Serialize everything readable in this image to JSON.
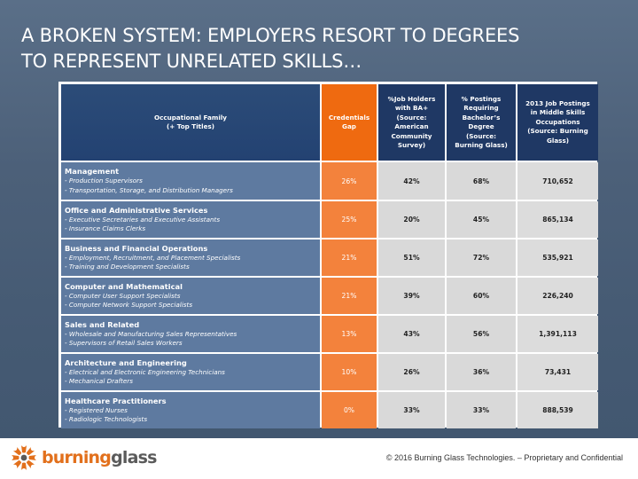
{
  "slide": {
    "title": "A BROKEN SYSTEM: EMPLOYERS RESORT TO DEGREES\nTO REPRESENT UNRELATED SKILLS…"
  },
  "table": {
    "headers": {
      "family": "Occupational Family\n(+ Top Titles)",
      "gap": "Credentials\nGap",
      "ba_holders": "%Job Holders\nwith BA+\n(Source:\nAmerican\nCommunity\nSurvey)",
      "postings_ba": "% Postings\nRequiring\nBachelor’s\nDegree\n(Source:\nBurning Glass)",
      "postings_2013": "2013 Job Postings\nin Middle Skills\nOccupations\n(Source: Burning\nGlass)"
    },
    "rows": [
      {
        "family": "Management",
        "titles": [
          "- Production Supervisors",
          "- Transportation, Storage, and Distribution Managers"
        ],
        "gap": "26%",
        "ba_holders": "42%",
        "postings_ba": "68%",
        "postings_2013": "710,652"
      },
      {
        "family": "Office and Administrative Services",
        "titles": [
          "- Executive Secretaries and Executive Assistants",
          "- Insurance Claims Clerks"
        ],
        "gap": "25%",
        "ba_holders": "20%",
        "postings_ba": "45%",
        "postings_2013": "865,134"
      },
      {
        "family": "Business and Financial Operations",
        "titles": [
          "- Employment, Recruitment, and Placement Specialists",
          "- Training and Development Specialists"
        ],
        "gap": "21%",
        "ba_holders": "51%",
        "postings_ba": "72%",
        "postings_2013": "535,921"
      },
      {
        "family": "Computer and Mathematical",
        "titles": [
          "- Computer User Support Specialists",
          "- Computer Network Support Specialists"
        ],
        "gap": "21%",
        "ba_holders": "39%",
        "postings_ba": "60%",
        "postings_2013": "226,240"
      },
      {
        "family": "Sales and Related",
        "titles": [
          "- Wholesale and Manufacturing Sales Representatives",
          "- Supervisors of Retail Sales Workers"
        ],
        "gap": "13%",
        "ba_holders": "43%",
        "postings_ba": "56%",
        "postings_2013": "1,391,113"
      },
      {
        "family": "Architecture and Engineering",
        "titles": [
          "- Electrical and Electronic Engineering Technicians",
          "- Mechanical Drafters"
        ],
        "gap": "10%",
        "ba_holders": "26%",
        "postings_ba": "36%",
        "postings_2013": "73,431"
      },
      {
        "family": "Healthcare Practitioners",
        "titles": [
          "- Registered Nurses",
          "- Radiologic Technologists"
        ],
        "gap": "0%",
        "ba_holders": "33%",
        "postings_ba": "33%",
        "postings_2013": "888,539"
      }
    ]
  },
  "footer": {
    "logo_word_1": "burning",
    "logo_word_2": "glass",
    "logo_icon": "burning-glass-logo-icon",
    "copyright": "© 2016 Burning Glass Technologies. – Proprietary and Confidential"
  },
  "colors": {
    "background": "#4c6079",
    "header_navy": "#1f3864",
    "gap_orange": "#ef6a10",
    "gap_cell_orange": "#f3823c",
    "family_blue": "#5e7aa0",
    "stat_gray": "#d9d9d9",
    "logo_orange": "#e2701c"
  }
}
